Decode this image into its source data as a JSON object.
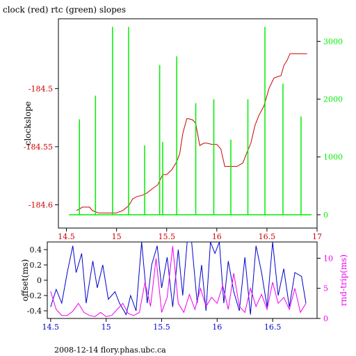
{
  "title": "clock (red) rtc (green) slopes",
  "footer": "2008-12-14 flory.phas.ubc.ca",
  "colors": {
    "red": "#cc0000",
    "green": "#00ee00",
    "blue": "#0000cc",
    "magenta": "#ee00ee",
    "axis": "#000000"
  },
  "chart_data": [
    {
      "type": "line",
      "ylabel": "clockslope",
      "y2label": "",
      "xlim": [
        14.42,
        17.0
      ],
      "ylim": [
        -184.62,
        -184.44
      ],
      "y2lim": [
        -230,
        3390
      ],
      "xticks": [
        14.5,
        15,
        15.5,
        16,
        16.5,
        17
      ],
      "xticklabels": [
        "14.5",
        "15",
        "15.5",
        "16",
        "16.5",
        "17"
      ],
      "yticks": [
        -184.6,
        -184.55,
        -184.5
      ],
      "yticklabels": [
        "-184.6",
        "-184.55",
        "-184.5"
      ],
      "y2ticks": [
        0,
        1000,
        2000,
        3000
      ],
      "y2ticklabels": [
        "0",
        "1000",
        "2000",
        "3000"
      ],
      "series": [
        {
          "axis": "left",
          "color": "red",
          "x": [
            14.6,
            14.66,
            14.73,
            14.76,
            14.82,
            14.9,
            15.0,
            15.06,
            15.12,
            15.16,
            15.2,
            15.25,
            15.3,
            15.36,
            15.41,
            15.46,
            15.5,
            15.55,
            15.6,
            15.63,
            15.66,
            15.7,
            15.72,
            15.76,
            15.79,
            15.83,
            15.87,
            15.9,
            15.95,
            16.0,
            16.04,
            16.08,
            16.12,
            16.15,
            16.2,
            16.26,
            16.3,
            16.34,
            16.38,
            16.42,
            16.47,
            16.52,
            16.57,
            16.6,
            16.64,
            16.67,
            16.7,
            16.73,
            16.8,
            16.9
          ],
          "y": [
            -184.605,
            -184.602,
            -184.602,
            -184.605,
            -184.607,
            -184.607,
            -184.607,
            -184.605,
            -184.601,
            -184.595,
            -184.593,
            -184.592,
            -184.59,
            -184.586,
            -184.583,
            -184.574,
            -184.574,
            -184.57,
            -184.563,
            -184.556,
            -184.539,
            -184.526,
            -184.526,
            -184.527,
            -184.53,
            -184.549,
            -184.547,
            -184.547,
            -184.548,
            -184.548,
            -184.552,
            -184.567,
            -184.567,
            -184.567,
            -184.567,
            -184.564,
            -184.555,
            -184.547,
            -184.532,
            -184.523,
            -184.515,
            -184.5,
            -184.491,
            -184.49,
            -184.489,
            -184.48,
            -184.476,
            -184.47,
            -184.47,
            -184.47
          ]
        },
        {
          "axis": "right",
          "color": "green",
          "kind": "spikes",
          "x": [
            14.63,
            14.79,
            14.96,
            15.12,
            15.28,
            15.43,
            15.46,
            15.6,
            15.79,
            15.97,
            16.14,
            16.31,
            16.48,
            16.66,
            16.84
          ],
          "y": [
            1650,
            2060,
            3250,
            3250,
            1200,
            2590,
            1260,
            2740,
            1930,
            2000,
            1300,
            2000,
            3250,
            2270,
            1700
          ]
        }
      ]
    },
    {
      "type": "line",
      "ylabel": "offset(ms)",
      "y2label": "rnd-trip(ms)",
      "xlim": [
        14.47,
        16.9
      ],
      "ylim": [
        -0.5,
        0.5
      ],
      "y2lim": [
        0,
        12.7
      ],
      "xticks": [
        14.5,
        15,
        15.5,
        16,
        16.5
      ],
      "xticklabels": [
        "14.5",
        "15",
        "15.5",
        "16",
        "16.5"
      ],
      "yticks": [
        -0.4,
        -0.2,
        0,
        0.2,
        0.4
      ],
      "yticklabels": [
        "-0.4",
        "-0.2",
        "0",
        "0.2",
        "0.4"
      ],
      "y2ticks": [
        0,
        5,
        10
      ],
      "y2ticklabels": [
        "0",
        "5",
        "10"
      ],
      "series": [
        {
          "axis": "left",
          "color": "blue",
          "x": [
            14.5,
            14.55,
            14.6,
            14.65,
            14.7,
            14.73,
            14.78,
            14.82,
            14.88,
            14.92,
            14.97,
            15.02,
            15.08,
            15.12,
            15.18,
            15.22,
            15.27,
            15.32,
            15.37,
            15.41,
            15.46,
            15.5,
            15.55,
            15.6,
            15.65,
            15.69,
            15.73,
            15.77,
            15.82,
            15.86,
            15.9,
            15.94,
            15.98,
            16.02,
            16.06,
            16.1,
            16.15,
            16.2,
            16.25,
            16.3,
            16.35,
            16.4,
            16.45,
            16.5,
            16.55,
            16.6,
            16.65,
            16.7,
            16.76,
            16.8
          ],
          "y": [
            -0.35,
            -0.12,
            -0.3,
            0.1,
            0.45,
            0.1,
            0.35,
            -0.3,
            0.25,
            -0.1,
            0.2,
            -0.25,
            -0.15,
            -0.3,
            -0.45,
            -0.2,
            -0.4,
            0.5,
            -0.3,
            0.2,
            0.45,
            -0.1,
            0.3,
            -0.35,
            0.4,
            -0.2,
            0.5,
            0.5,
            -0.3,
            0.2,
            -0.4,
            0.5,
            0.35,
            0.5,
            -0.3,
            0.25,
            -0.15,
            -0.4,
            0.3,
            -0.45,
            0.45,
            0.1,
            -0.35,
            0.5,
            -0.2,
            0.15,
            -0.35,
            0.1,
            0.05,
            -0.3
          ]
        },
        {
          "axis": "right",
          "color": "magenta",
          "x": [
            14.5,
            14.55,
            14.6,
            14.65,
            14.7,
            14.75,
            14.8,
            14.85,
            14.9,
            14.95,
            15.0,
            15.05,
            15.1,
            15.15,
            15.2,
            15.25,
            15.3,
            15.35,
            15.4,
            15.45,
            15.5,
            15.55,
            15.6,
            15.65,
            15.7,
            15.75,
            15.8,
            15.85,
            15.9,
            15.95,
            16.0,
            16.05,
            16.1,
            16.15,
            16.2,
            16.25,
            16.3,
            16.35,
            16.4,
            16.45,
            16.5,
            16.55,
            16.6,
            16.65,
            16.7,
            16.75,
            16.8
          ],
          "y": [
            4.5,
            1.5,
            0.5,
            0.5,
            1.2,
            2.5,
            1,
            0.5,
            0.3,
            1,
            0.3,
            0.5,
            1.5,
            2.5,
            0.8,
            0.5,
            1,
            6,
            2,
            10,
            1,
            3.5,
            12,
            2.5,
            1,
            4,
            1.5,
            5,
            2,
            3.5,
            2.5,
            5.5,
            1.5,
            7.5,
            2,
            1,
            5,
            2,
            4,
            1.5,
            6,
            2.5,
            3.5,
            1.5,
            5,
            1,
            2.5
          ]
        }
      ]
    }
  ]
}
